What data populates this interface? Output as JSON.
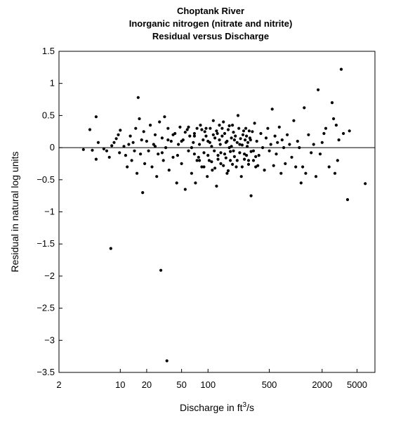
{
  "chart_data": {
    "type": "scatter",
    "title_lines": [
      "Choptank River",
      "Inorganic nitrogen (nitrate and nitrite)",
      "Residual versus Discharge"
    ],
    "xlabel_prefix": "Discharge in ft",
    "xlabel_sup": "3",
    "xlabel_suffix": "/s",
    "ylabel": "Residual in natural log units",
    "x_scale": "log",
    "xlim": [
      2,
      8000
    ],
    "ylim": [
      -3.5,
      1.5
    ],
    "x_ticks": [
      2,
      10,
      20,
      50,
      100,
      500,
      2000,
      5000
    ],
    "x_tick_labels": [
      "2",
      "10",
      "20",
      "50",
      "100",
      "500",
      "2000",
      "5000"
    ],
    "y_ticks": [
      1.5,
      1,
      0.5,
      0,
      -0.5,
      -1,
      -1.5,
      -2,
      -2.5,
      -3,
      -3.5
    ],
    "y_tick_labels": [
      "1.5",
      "1",
      "0.5",
      "0",
      "−0.5",
      "−1",
      "−1.5",
      "−2",
      "−2.5",
      "−3",
      "−3.5"
    ],
    "reference_line_y": 0,
    "grid": false,
    "marker_color": "#000000",
    "points": [
      [
        3.8,
        -0.03
      ],
      [
        4.5,
        0.28
      ],
      [
        4.8,
        -0.04
      ],
      [
        5.3,
        0.48
      ],
      [
        5.3,
        -0.18
      ],
      [
        5.6,
        0.08
      ],
      [
        6.5,
        -0.02
      ],
      [
        7,
        -0.05
      ],
      [
        7.5,
        -0.15
      ],
      [
        7.8,
        -1.57
      ],
      [
        8,
        0.03
      ],
      [
        8.5,
        0.08
      ],
      [
        9,
        0.14
      ],
      [
        9.5,
        0.2
      ],
      [
        9.8,
        -0.08
      ],
      [
        10,
        0.27
      ],
      [
        11,
        0.02
      ],
      [
        11.5,
        -0.12
      ],
      [
        12,
        -0.3
      ],
      [
        12.5,
        0.05
      ],
      [
        13,
        0.18
      ],
      [
        13.5,
        -0.2
      ],
      [
        14,
        0.08
      ],
      [
        14.5,
        -0.05
      ],
      [
        15,
        0.3
      ],
      [
        15.5,
        -0.4
      ],
      [
        16,
        0.78
      ],
      [
        16.5,
        0.45
      ],
      [
        17,
        -0.1
      ],
      [
        17.5,
        0.12
      ],
      [
        18,
        -0.7
      ],
      [
        18.5,
        0.25
      ],
      [
        19,
        -0.25
      ],
      [
        20,
        0.1
      ],
      [
        21,
        -0.05
      ],
      [
        22,
        0.35
      ],
      [
        23,
        -0.3
      ],
      [
        24,
        0.05
      ],
      [
        25,
        0.2
      ],
      [
        26,
        -0.45
      ],
      [
        27,
        -0.1
      ],
      [
        28,
        0.4
      ],
      [
        29,
        -1.91
      ],
      [
        30,
        0.15
      ],
      [
        31,
        -0.2
      ],
      [
        32,
        0.48
      ],
      [
        33,
        0.0
      ],
      [
        34,
        -3.32
      ],
      [
        35,
        0.3
      ],
      [
        36,
        -0.35
      ],
      [
        38,
        0.1
      ],
      [
        40,
        -0.15
      ],
      [
        42,
        0.22
      ],
      [
        44,
        -0.55
      ],
      [
        46,
        0.05
      ],
      [
        48,
        0.32
      ],
      [
        50,
        -0.25
      ],
      [
        52,
        0.12
      ],
      [
        55,
        -0.65
      ],
      [
        58,
        0.28
      ],
      [
        60,
        -0.05
      ],
      [
        62,
        0.18
      ],
      [
        65,
        -0.4
      ],
      [
        68,
        0.08
      ],
      [
        70,
        0.22
      ],
      [
        72,
        -0.55
      ],
      [
        75,
        0.3
      ],
      [
        78,
        -0.15
      ],
      [
        80,
        0.05
      ],
      [
        82,
        0.35
      ],
      [
        85,
        -0.3
      ],
      [
        88,
        0.12
      ],
      [
        90,
        -0.08
      ],
      [
        92,
        0.25
      ],
      [
        95,
        0.18
      ],
      [
        98,
        -0.45
      ],
      [
        100,
        0.1
      ],
      [
        103,
        -0.2
      ],
      [
        106,
        0.3
      ],
      [
        110,
        0.02
      ],
      [
        112,
        -0.35
      ],
      [
        115,
        0.42
      ],
      [
        118,
        -0.05
      ],
      [
        120,
        0.15
      ],
      [
        125,
        -0.6
      ],
      [
        128,
        0.22
      ],
      [
        130,
        -0.12
      ],
      [
        135,
        0.35
      ],
      [
        138,
        0.05
      ],
      [
        140,
        -0.25
      ],
      [
        145,
        0.18
      ],
      [
        150,
        0.4
      ],
      [
        155,
        -0.1
      ],
      [
        160,
        0.08
      ],
      [
        165,
        -0.4
      ],
      [
        170,
        0.28
      ],
      [
        175,
        0.0
      ],
      [
        180,
        -0.2
      ],
      [
        185,
        0.15
      ],
      [
        190,
        0.35
      ],
      [
        195,
        -0.05
      ],
      [
        200,
        0.12
      ],
      [
        210,
        -0.3
      ],
      [
        220,
        0.5
      ],
      [
        230,
        0.05
      ],
      [
        240,
        -0.45
      ],
      [
        250,
        0.2
      ],
      [
        260,
        -0.1
      ],
      [
        270,
        0.3
      ],
      [
        280,
        0.02
      ],
      [
        290,
        -0.2
      ],
      [
        300,
        0.15
      ],
      [
        310,
        -0.75
      ],
      [
        320,
        0.25
      ],
      [
        330,
        -0.05
      ],
      [
        340,
        0.38
      ],
      [
        350,
        -0.3
      ],
      [
        360,
        0.1
      ],
      [
        380,
        -0.12
      ],
      [
        400,
        0.22
      ],
      [
        420,
        0.0
      ],
      [
        440,
        -0.35
      ],
      [
        460,
        0.15
      ],
      [
        480,
        0.3
      ],
      [
        500,
        -0.05
      ],
      [
        520,
        0.05
      ],
      [
        540,
        0.6
      ],
      [
        560,
        -0.28
      ],
      [
        580,
        0.18
      ],
      [
        600,
        -0.1
      ],
      [
        620,
        0.08
      ],
      [
        650,
        0.32
      ],
      [
        680,
        -0.4
      ],
      [
        700,
        0.12
      ],
      [
        730,
        0.0
      ],
      [
        760,
        -0.25
      ],
      [
        800,
        0.2
      ],
      [
        850,
        0.05
      ],
      [
        900,
        -0.15
      ],
      [
        950,
        0.42
      ],
      [
        1000,
        -0.3
      ],
      [
        1050,
        0.1
      ],
      [
        1100,
        0.0
      ],
      [
        1150,
        -0.55
      ],
      [
        1200,
        -0.3
      ],
      [
        1250,
        0.62
      ],
      [
        1300,
        -0.4
      ],
      [
        1400,
        0.2
      ],
      [
        1500,
        -0.08
      ],
      [
        1600,
        0.05
      ],
      [
        1700,
        -0.45
      ],
      [
        1800,
        0.9
      ],
      [
        1900,
        -0.1
      ],
      [
        2000,
        0.08
      ],
      [
        2100,
        0.22
      ],
      [
        2200,
        0.3
      ],
      [
        2400,
        -0.3
      ],
      [
        2600,
        0.7
      ],
      [
        2700,
        0.45
      ],
      [
        2800,
        -0.4
      ],
      [
        2900,
        0.35
      ],
      [
        3000,
        -0.2
      ],
      [
        3100,
        0.12
      ],
      [
        3300,
        1.22
      ],
      [
        3500,
        0.22
      ],
      [
        3900,
        -0.81
      ],
      [
        4100,
        0.26
      ],
      [
        6200,
        -0.56
      ],
      [
        60,
        0.32
      ],
      [
        70,
        0.18
      ],
      [
        85,
        0.28
      ],
      [
        95,
        0.3
      ],
      [
        105,
        0.08
      ],
      [
        115,
        0.2
      ],
      [
        125,
        0.26
      ],
      [
        135,
        0.12
      ],
      [
        145,
        0.3
      ],
      [
        155,
        0.22
      ],
      [
        165,
        0.1
      ],
      [
        175,
        0.34
      ],
      [
        185,
        0.02
      ],
      [
        195,
        0.24
      ],
      [
        205,
        0.18
      ],
      [
        215,
        0.08
      ],
      [
        225,
        0.3
      ],
      [
        235,
        0.14
      ],
      [
        245,
        0.04
      ],
      [
        255,
        0.26
      ],
      [
        265,
        0.12
      ],
      [
        275,
        0.18
      ],
      [
        285,
        0.08
      ],
      [
        295,
        0.26
      ],
      [
        305,
        0.12
      ],
      [
        70,
        -0.1
      ],
      [
        80,
        -0.2
      ],
      [
        90,
        -0.3
      ],
      [
        100,
        -0.12
      ],
      [
        110,
        -0.22
      ],
      [
        120,
        -0.32
      ],
      [
        130,
        -0.18
      ],
      [
        140,
        -0.08
      ],
      [
        150,
        -0.28
      ],
      [
        160,
        -0.16
      ],
      [
        170,
        -0.36
      ],
      [
        180,
        -0.06
      ],
      [
        190,
        -0.26
      ],
      [
        200,
        -0.14
      ],
      [
        215,
        -0.2
      ],
      [
        230,
        -0.08
      ],
      [
        245,
        -0.3
      ],
      [
        260,
        -0.18
      ],
      [
        275,
        -0.12
      ],
      [
        290,
        -0.26
      ],
      [
        310,
        -0.06
      ],
      [
        330,
        -0.2
      ],
      [
        350,
        -0.14
      ],
      [
        370,
        -0.28
      ],
      [
        25,
        0.02
      ],
      [
        30,
        -0.08
      ],
      [
        35,
        0.12
      ],
      [
        40,
        0.2
      ],
      [
        45,
        -0.12
      ],
      [
        50,
        0.1
      ],
      [
        55,
        0.24
      ],
      [
        65,
        0.0
      ],
      [
        75,
        -0.2
      ]
    ]
  }
}
